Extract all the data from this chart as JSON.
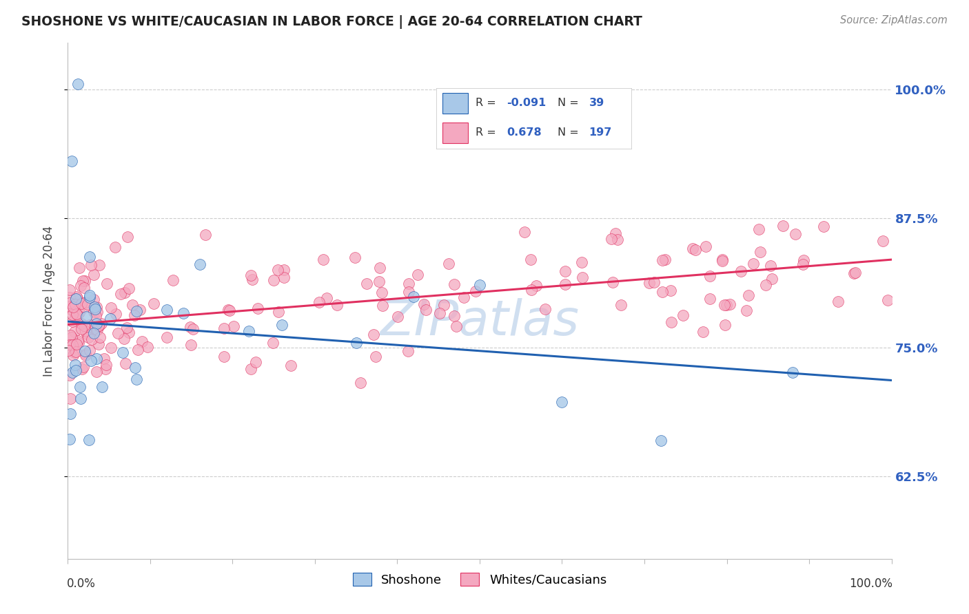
{
  "title": "SHOSHONE VS WHITE/CAUCASIAN IN LABOR FORCE | AGE 20-64 CORRELATION CHART",
  "source": "Source: ZipAtlas.com",
  "ylabel": "In Labor Force | Age 20-64",
  "ytick_values": [
    0.625,
    0.75,
    0.875,
    1.0
  ],
  "xlim": [
    0.0,
    1.0
  ],
  "ylim": [
    0.545,
    1.045
  ],
  "shoshone_color": "#a8c8e8",
  "caucasian_color": "#f4a8c0",
  "line_shoshone_color": "#2060b0",
  "line_caucasian_color": "#e03060",
  "watermark": "ZIPatlas",
  "watermark_color": "#d0dff0",
  "grid_color": "#cccccc",
  "title_color": "#222222",
  "source_color": "#888888",
  "ytick_color": "#3060c0",
  "legend_border_color": "#cccccc",
  "legend_text_color": "#333333",
  "legend_value_color": "#3060c0",
  "shoshone_r": "-0.091",
  "shoshone_n": "39",
  "caucasian_r": "0.678",
  "caucasian_n": "197",
  "sho_line_x0": 0.0,
  "sho_line_y0": 0.775,
  "sho_line_x1": 1.0,
  "sho_line_y1": 0.718,
  "cau_line_x0": 0.0,
  "cau_line_y0": 0.772,
  "cau_line_x1": 1.0,
  "cau_line_y1": 0.835
}
